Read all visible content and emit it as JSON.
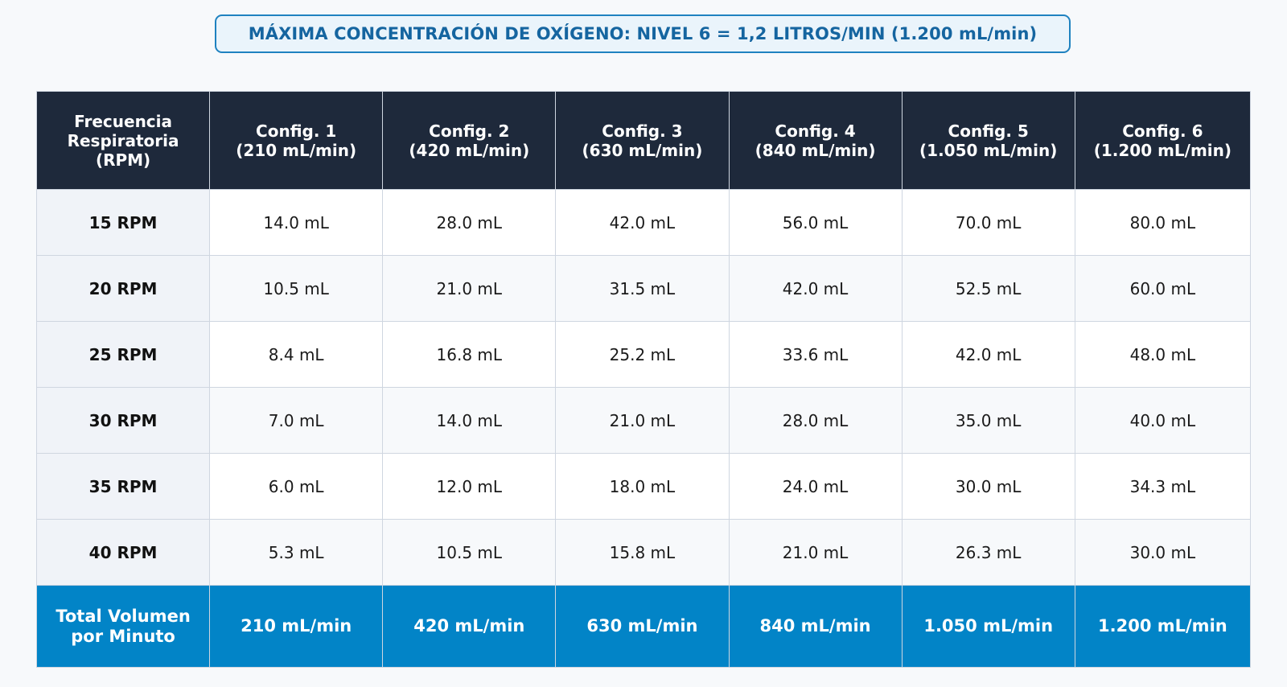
{
  "title": "MÁXIMA CONCENTRACIÓN DE OXÍGENO: NIVEL 6 = 1,2 LITROS/MIN (1.200 mL/min)",
  "colors": {
    "header_bg": "#1e293b",
    "total_row_bg": "#0284c7",
    "title_border": "#1f82c0",
    "title_text": "#1565a0"
  },
  "chart_data": {
    "type": "table",
    "title": "MÁXIMA CONCENTRACIÓN DE OXÍGENO: NIVEL 6 = 1,2 LITROS/MIN (1.200 mL/min)",
    "columns": [
      "Frecuencia\nRespiratoria\n(RPM)",
      "Config. 1\n(210 mL/min)",
      "Config. 2\n(420 mL/min)",
      "Config. 3\n(630 mL/min)",
      "Config. 4\n(840 mL/min)",
      "Config. 5\n(1.050 mL/min)",
      "Config. 6\n(1.200 mL/min)"
    ],
    "rows": [
      {
        "label": "15 RPM",
        "values": [
          "14.0 mL",
          "28.0 mL",
          "42.0 mL",
          "56.0 mL",
          "70.0 mL",
          "80.0 mL"
        ]
      },
      {
        "label": "20 RPM",
        "values": [
          "10.5 mL",
          "21.0 mL",
          "31.5 mL",
          "42.0 mL",
          "52.5 mL",
          "60.0 mL"
        ]
      },
      {
        "label": "25 RPM",
        "values": [
          "8.4 mL",
          "16.8 mL",
          "25.2 mL",
          "33.6 mL",
          "42.0 mL",
          "48.0 mL"
        ]
      },
      {
        "label": "30 RPM",
        "values": [
          "7.0 mL",
          "14.0 mL",
          "21.0 mL",
          "28.0 mL",
          "35.0 mL",
          "40.0 mL"
        ]
      },
      {
        "label": "35 RPM",
        "values": [
          "6.0 mL",
          "12.0 mL",
          "18.0 mL",
          "24.0 mL",
          "30.0 mL",
          "34.3 mL"
        ]
      },
      {
        "label": "40 RPM",
        "values": [
          "5.3 mL",
          "10.5 mL",
          "15.8 mL",
          "21.0 mL",
          "26.3 mL",
          "30.0 mL"
        ]
      }
    ],
    "total_row": {
      "label": "Total Volumen\npor Minuto",
      "values": [
        "210 mL/min",
        "420 mL/min",
        "630 mL/min",
        "840 mL/min",
        "1.050 mL/min",
        "1.200 mL/min"
      ]
    }
  }
}
